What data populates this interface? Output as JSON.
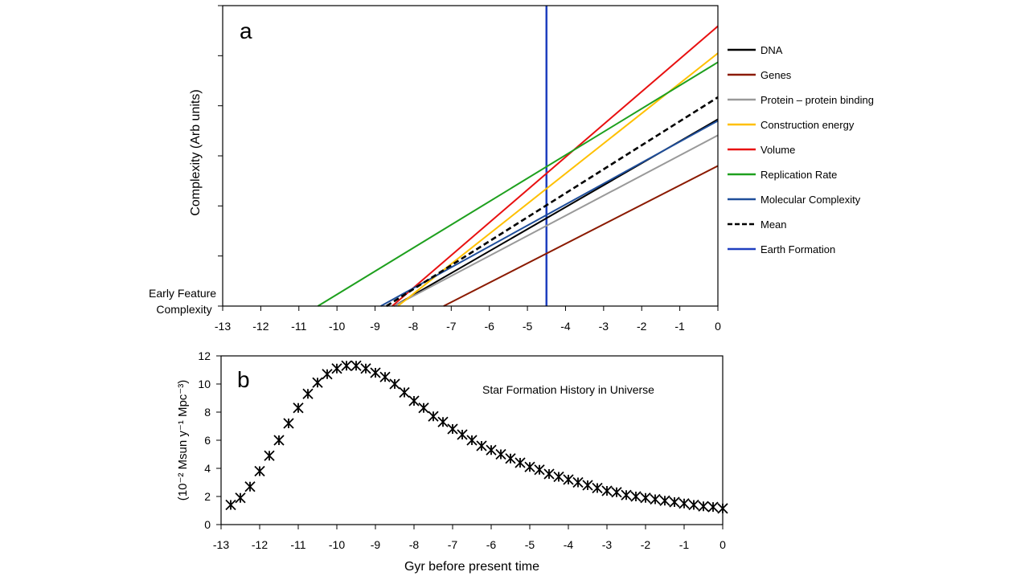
{
  "chart_data": [
    {
      "type": "line",
      "panel_label": "a",
      "ylabel": "Complexity (Arb units)",
      "y_origin_label": "Early Feature Complexity",
      "xlim": [
        -13,
        0
      ],
      "xticks": [
        -13,
        -12,
        -11,
        -10,
        -9,
        -8,
        -7,
        -6,
        -5,
        -4,
        -3,
        -2,
        -1,
        0
      ],
      "ylim": [
        0,
        6
      ],
      "yticks_unlabeled": [
        0,
        1,
        2,
        3,
        4,
        5,
        6
      ],
      "grid": false,
      "legend_placement": "right",
      "series": [
        {
          "name": "DNA",
          "color": "#000000",
          "dash": false,
          "x": [
            -8.5,
            0
          ],
          "y": [
            0,
            3.73
          ]
        },
        {
          "name": "Genes",
          "color": "#8B1A00",
          "dash": false,
          "x": [
            -7.2,
            0
          ],
          "y": [
            0,
            2.8
          ]
        },
        {
          "name": "Protein – protein binding",
          "color": "#999999",
          "dash": false,
          "x": [
            -8.5,
            0
          ],
          "y": [
            0,
            3.41
          ]
        },
        {
          "name": "Construction energy",
          "color": "#FFC000",
          "dash": false,
          "x": [
            -8.4,
            0
          ],
          "y": [
            0,
            5.05
          ]
        },
        {
          "name": "Volume",
          "color": "#E81010",
          "dash": false,
          "x": [
            -8.55,
            0
          ],
          "y": [
            0,
            5.59
          ]
        },
        {
          "name": "Replication Rate",
          "color": "#1EA01E",
          "dash": false,
          "x": [
            -10.5,
            0
          ],
          "y": [
            0,
            4.87
          ]
        },
        {
          "name": "Molecular Complexity",
          "color": "#1F4E9A",
          "dash": false,
          "x": [
            -8.85,
            0
          ],
          "y": [
            0,
            3.7
          ]
        },
        {
          "name": "Mean",
          "color": "#000000",
          "dash": true,
          "x": [
            -8.7,
            0
          ],
          "y": [
            0,
            4.17
          ]
        }
      ],
      "vertical_lines": [
        {
          "name": "Earth Formation",
          "color": "#1F3FBF",
          "x": -4.5
        }
      ]
    },
    {
      "type": "scatter",
      "panel_label": "b",
      "annotation": "Star Formation History in Universe",
      "xlabel": "Gyr before present time",
      "ylabel": "(10⁻² Msun y⁻¹ Mpc⁻³)",
      "xlim": [
        -13,
        0
      ],
      "xticks": [
        -13,
        -12,
        -11,
        -10,
        -9,
        -8,
        -7,
        -6,
        -5,
        -4,
        -3,
        -2,
        -1,
        0
      ],
      "ylim": [
        0,
        12
      ],
      "yticks": [
        0,
        2,
        4,
        6,
        8,
        10,
        12
      ],
      "grid": false,
      "marker": "asterisk",
      "x": [
        -12.75,
        -12.5,
        -12.25,
        -12,
        -11.75,
        -11.5,
        -11.25,
        -11,
        -10.75,
        -10.5,
        -10.25,
        -10,
        -9.75,
        -9.5,
        -9.25,
        -9,
        -8.75,
        -8.5,
        -8.25,
        -8,
        -7.75,
        -7.5,
        -7.25,
        -7,
        -6.75,
        -6.5,
        -6.25,
        -6,
        -5.75,
        -5.5,
        -5.25,
        -5,
        -4.75,
        -4.5,
        -4.25,
        -4,
        -3.75,
        -3.5,
        -3.25,
        -3,
        -2.75,
        -2.5,
        -2.25,
        -2,
        -1.75,
        -1.5,
        -1.25,
        -1,
        -0.75,
        -0.5,
        -0.25,
        0
      ],
      "y": [
        1.4,
        1.9,
        2.7,
        3.8,
        4.9,
        6.0,
        7.2,
        8.3,
        9.3,
        10.1,
        10.7,
        11.1,
        11.3,
        11.3,
        11.1,
        10.8,
        10.5,
        10.0,
        9.4,
        8.8,
        8.3,
        7.7,
        7.3,
        6.8,
        6.4,
        6.0,
        5.6,
        5.3,
        5.0,
        4.7,
        4.4,
        4.1,
        3.9,
        3.6,
        3.4,
        3.2,
        3.0,
        2.8,
        2.6,
        2.4,
        2.3,
        2.1,
        2.0,
        1.9,
        1.8,
        1.7,
        1.6,
        1.5,
        1.4,
        1.3,
        1.25,
        1.15
      ]
    }
  ]
}
